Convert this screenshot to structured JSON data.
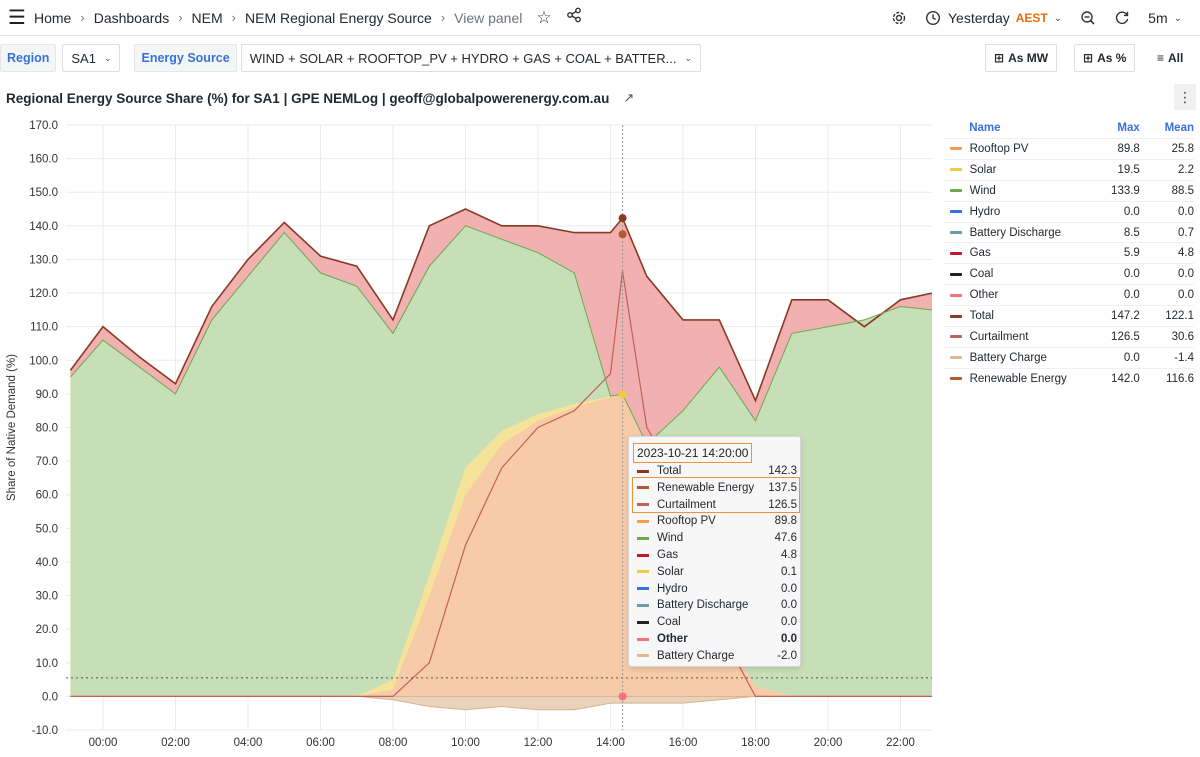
{
  "nav": {
    "crumbs": [
      "Home",
      "Dashboards",
      "NEM",
      "NEM Regional Energy Source"
    ],
    "last": "View panel",
    "time_range": "Yesterday",
    "timezone": "AEST",
    "refresh": "5m",
    "icons": [
      "menu-icon",
      "star-icon",
      "share-icon",
      "gear-icon",
      "clock-icon",
      "zoom-out-icon",
      "refresh-icon"
    ]
  },
  "vars": {
    "region_label": "Region",
    "region_value": "SA1",
    "source_label": "Energy Source",
    "source_value": "WIND + SOLAR + ROOFTOP_PV + HYDRO + GAS + COAL + BATTER...",
    "btn_mw": "As MW",
    "btn_pct": "As %",
    "btn_all": "All"
  },
  "panel": {
    "title": "Regional Energy Source Share (%) for SA1 | GPE NEMLog | geoff@globalpowerenergy.com.au"
  },
  "legend": {
    "headers": {
      "name": "Name",
      "max": "Max",
      "mean": "Mean"
    },
    "rows": [
      {
        "name": "Rooftop PV",
        "max": "89.8",
        "mean": "25.8",
        "color": "#f79a52"
      },
      {
        "name": "Solar",
        "max": "19.5",
        "mean": "2.2",
        "color": "#f2cc3c"
      },
      {
        "name": "Wind",
        "max": "133.9",
        "mean": "88.5",
        "color": "#6ba84f"
      },
      {
        "name": "Hydro",
        "max": "0.0",
        "mean": "0.0",
        "color": "#3274d9"
      },
      {
        "name": "Battery Discharge",
        "max": "8.5",
        "mean": "0.7",
        "color": "#6a9ea0"
      },
      {
        "name": "Gas",
        "max": "5.9",
        "mean": "4.8",
        "color": "#c4162a"
      },
      {
        "name": "Coal",
        "max": "0.0",
        "mean": "0.0",
        "color": "#202226"
      },
      {
        "name": "Other",
        "max": "0.0",
        "mean": "0.0",
        "color": "#f2727e"
      },
      {
        "name": "Total",
        "max": "147.2",
        "mean": "122.1",
        "color": "#8a3a22"
      },
      {
        "name": "Curtailment",
        "max": "126.5",
        "mean": "30.6",
        "color": "#c0615a"
      },
      {
        "name": "Battery Charge",
        "max": "0.0",
        "mean": "-1.4",
        "color": "#e0b990"
      },
      {
        "name": "Renewable Energy",
        "max": "142.0",
        "mean": "116.6",
        "color": "#b25a2e"
      }
    ]
  },
  "tooltip": {
    "time": "2023-10-21 14:20:00",
    "rows": [
      {
        "name": "Total",
        "value": "142.3",
        "color": "#8a3a22"
      },
      {
        "name": "Renewable Energy",
        "value": "137.5",
        "color": "#b25a2e"
      },
      {
        "name": "Curtailment",
        "value": "126.5",
        "color": "#c0615a"
      },
      {
        "name": "Rooftop PV",
        "value": "89.8",
        "color": "#f79a52"
      },
      {
        "name": "Wind",
        "value": "47.6",
        "color": "#6ba84f"
      },
      {
        "name": "Gas",
        "value": "4.8",
        "color": "#c4162a"
      },
      {
        "name": "Solar",
        "value": "0.1",
        "color": "#f2cc3c"
      },
      {
        "name": "Hydro",
        "value": "0.0",
        "color": "#3274d9"
      },
      {
        "name": "Battery Discharge",
        "value": "0.0",
        "color": "#6a9ea0"
      },
      {
        "name": "Coal",
        "value": "0.0",
        "color": "#202226"
      },
      {
        "name": "Other",
        "value": "0.0",
        "color": "#f2727e",
        "bold": true
      },
      {
        "name": "Battery Charge",
        "value": "-2.0",
        "color": "#e0b990"
      }
    ]
  },
  "chart_data": {
    "type": "area",
    "ylabel": "Share of Native Demand (%)",
    "ylim": [
      -10,
      170
    ],
    "yticks": [
      "170.0",
      "160.0",
      "150.0",
      "140.0",
      "130.0",
      "120.0",
      "110.0",
      "100.0",
      "90.0",
      "80.0",
      "70.0",
      "60.0",
      "50.0",
      "40.0",
      "30.0",
      "20.0",
      "10.0",
      "0.0",
      "-10.0"
    ],
    "xticks": [
      "00:00",
      "02:00",
      "04:00",
      "06:00",
      "08:00",
      "10:00",
      "12:00",
      "14:00",
      "16:00",
      "18:00",
      "20:00",
      "22:00"
    ],
    "x_hours": [
      -0.9,
      0,
      1,
      2,
      3,
      4,
      5,
      6,
      7,
      8,
      9,
      10,
      11,
      12,
      13,
      14,
      14.33,
      15,
      16,
      17,
      18,
      19,
      20,
      21,
      22,
      23
    ],
    "series": [
      {
        "name": "Wind",
        "values": [
          95,
          106,
          98,
          90,
          112,
          125,
          138,
          126,
          122,
          108,
          128,
          140,
          136,
          132,
          126,
          76,
          47.6,
          60,
          85,
          98,
          82,
          108,
          110,
          112,
          116,
          115
        ]
      },
      {
        "name": "Rooftop PV",
        "values": [
          0,
          0,
          0,
          0,
          0,
          0,
          0,
          0,
          0,
          2,
          30,
          60,
          75,
          82,
          86,
          89,
          89.8,
          75,
          50,
          20,
          3,
          0,
          0,
          0,
          0,
          0
        ]
      },
      {
        "name": "Solar",
        "values": [
          0,
          0,
          0,
          0,
          0,
          0,
          0,
          0,
          0,
          3,
          6,
          8,
          4,
          2,
          1,
          0.3,
          0.1,
          0,
          0,
          0,
          0,
          0,
          0,
          0,
          0,
          0
        ]
      },
      {
        "name": "Total",
        "values": [
          97,
          110,
          101,
          93,
          116,
          130,
          141,
          131,
          128,
          112,
          140,
          145,
          140,
          140,
          138,
          138,
          142.3,
          125,
          112,
          112,
          88,
          118,
          118,
          110,
          118,
          120
        ]
      },
      {
        "name": "Curtailment",
        "values": [
          0,
          0,
          0,
          0,
          0,
          0,
          0,
          0,
          0,
          0,
          10,
          45,
          68,
          80,
          85,
          96,
          126.5,
          80,
          62,
          20,
          0,
          0,
          0,
          0,
          0,
          0
        ]
      },
      {
        "name": "Battery Charge",
        "values": [
          0,
          0,
          0,
          0,
          0,
          0,
          0,
          0,
          0,
          -1,
          -3,
          -4,
          -3,
          -4,
          -4,
          -2,
          -2,
          -2,
          -2,
          -1,
          0,
          0,
          0,
          0,
          0,
          0
        ]
      }
    ],
    "cursor_time": "14:20",
    "threshold": 5.5,
    "grid": true,
    "legend_placement": "right"
  }
}
